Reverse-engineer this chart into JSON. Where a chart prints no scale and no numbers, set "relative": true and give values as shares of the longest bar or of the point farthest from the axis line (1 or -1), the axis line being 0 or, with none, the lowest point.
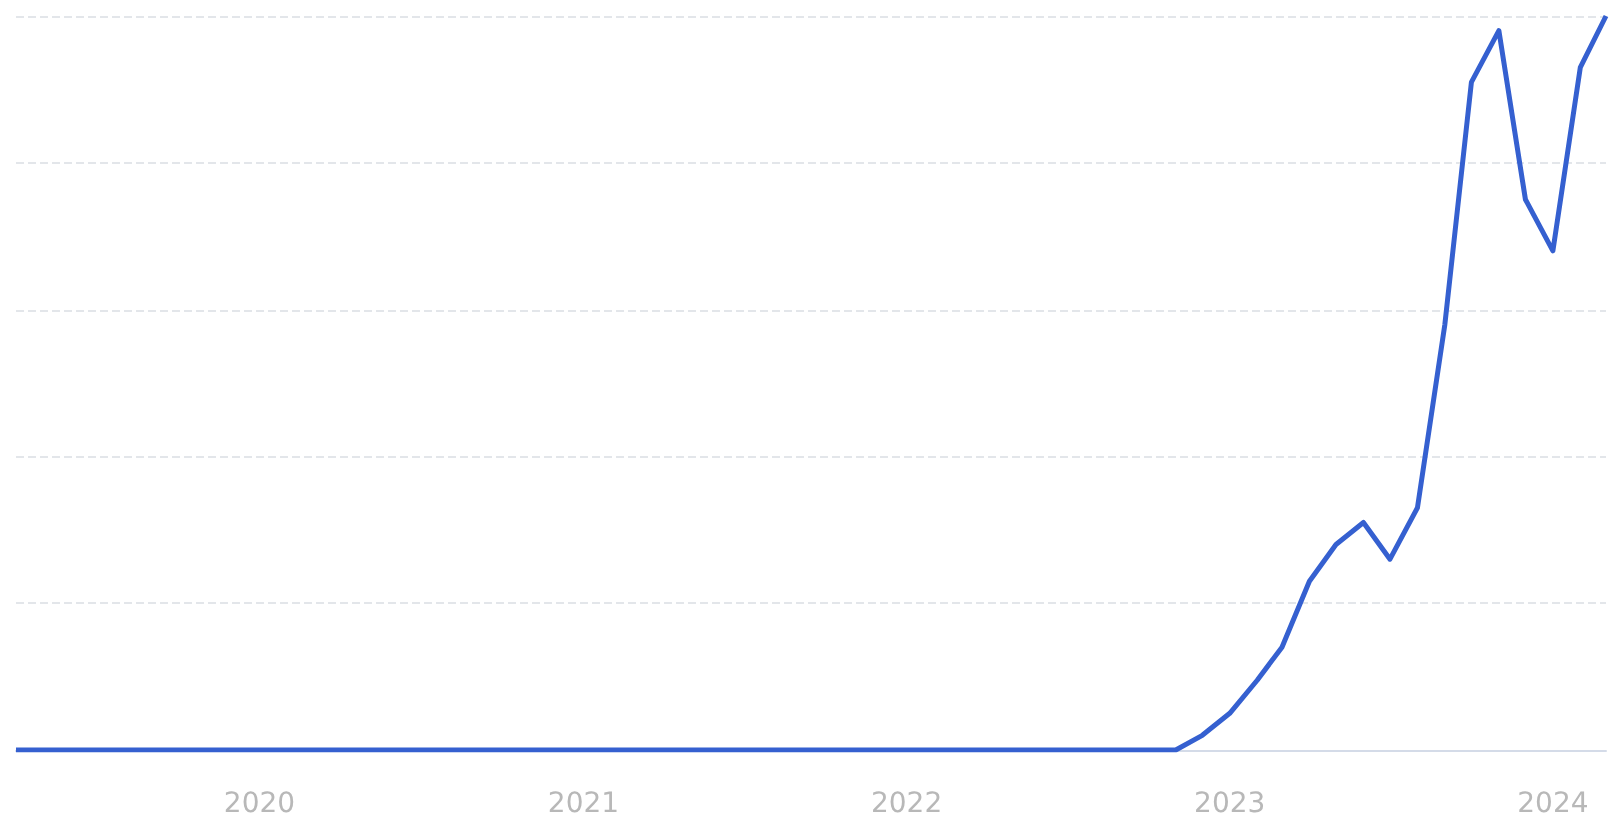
{
  "chart_data": {
    "type": "line",
    "relative": true,
    "grid": "y",
    "color": "#3560d0",
    "x": [
      "2019-04",
      "2022-11",
      "2022-12",
      "2023-01",
      "2023-02",
      "2023-03",
      "2023-04",
      "2023-05",
      "2023-06",
      "2023-07",
      "2023-08",
      "2023-09",
      "2023-10",
      "2023-11",
      "2023-12",
      "2024-01",
      "2024-02",
      "2024-03"
    ],
    "values": [
      0,
      0,
      0.02,
      0.05,
      0.095,
      0.14,
      0.23,
      0.28,
      0.31,
      0.26,
      0.33,
      0.58,
      0.91,
      0.98,
      0.75,
      0.68,
      0.93,
      1.0
    ],
    "xlim": [
      "2019-04",
      "2024-03"
    ],
    "xticks": [
      {
        "value": "2020",
        "label": "2020"
      },
      {
        "value": "2021",
        "label": "2021"
      },
      {
        "value": "2022",
        "label": "2022"
      },
      {
        "value": "2023",
        "label": "2023"
      },
      {
        "value": "2024",
        "label": "2024"
      }
    ]
  }
}
